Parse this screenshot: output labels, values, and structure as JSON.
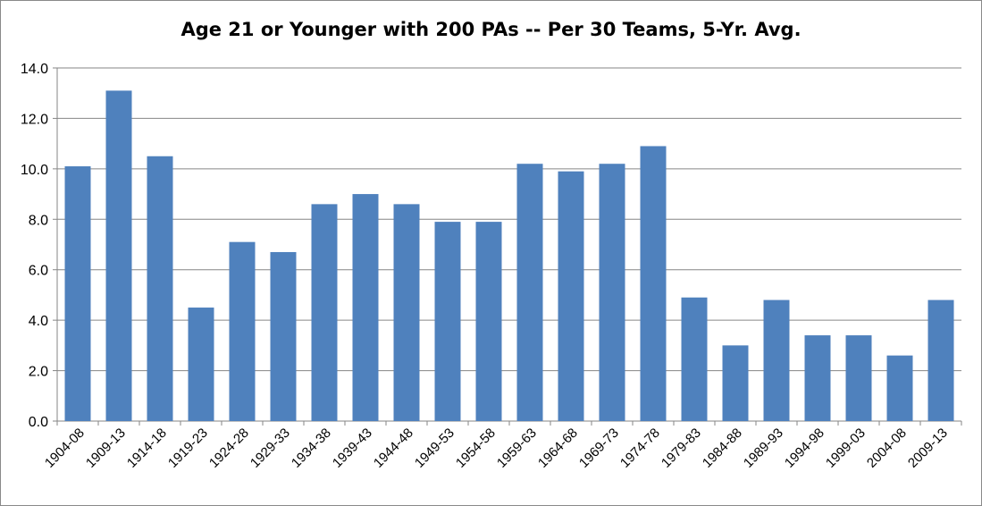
{
  "chart_data": {
    "type": "bar",
    "title": "Age 21 or Younger with 200 PAs -- Per 30 Teams, 5-Yr. Avg.",
    "xlabel": "",
    "ylabel": "",
    "ylim": [
      0,
      14
    ],
    "ytick_step": 2,
    "ytick_decimals": 1,
    "grid": true,
    "legend": "none",
    "bar_color": "#4F81BD",
    "categories": [
      "1904-08",
      "1909-13",
      "1914-18",
      "1919-23",
      "1924-28",
      "1929-33",
      "1934-38",
      "1939-43",
      "1944-48",
      "1949-53",
      "1954-58",
      "1959-63",
      "1964-68",
      "1969-73",
      "1974-78",
      "1979-83",
      "1984-88",
      "1989-93",
      "1994-98",
      "1999-03",
      "2004-08",
      "2009-13"
    ],
    "values": [
      10.1,
      13.1,
      10.5,
      4.5,
      7.1,
      6.7,
      8.6,
      9.0,
      8.6,
      7.9,
      7.9,
      10.2,
      9.9,
      10.2,
      10.9,
      4.9,
      3.0,
      4.8,
      3.4,
      3.4,
      2.6,
      4.8
    ]
  }
}
